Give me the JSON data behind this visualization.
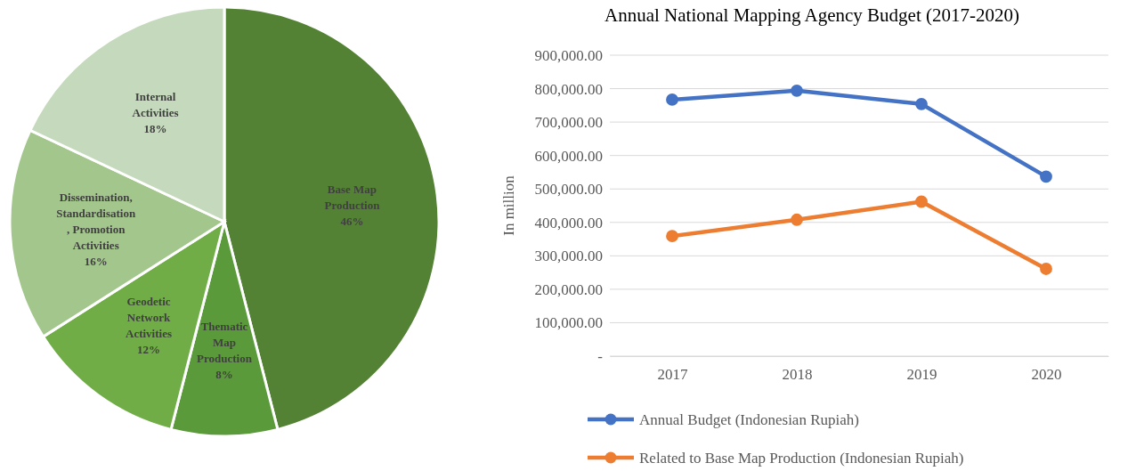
{
  "chart_data": [
    {
      "type": "pie",
      "categories": [
        "Base Map Production",
        "Thematic Map Production",
        "Geodetic Network Activities",
        "Dissemination, Standardisation, Promotion Activities",
        "Internal Activities"
      ],
      "values": [
        46,
        8,
        12,
        16,
        18
      ],
      "colors": [
        "#548235",
        "#5a9a3a",
        "#70ad47",
        "#a3c68c",
        "#c5dabc"
      ],
      "value_labels": [
        "46%",
        "8%",
        "12%",
        "16%",
        "18%"
      ]
    },
    {
      "type": "line",
      "title": "Annual National Mapping Agency Budget (2017-2020)",
      "ylabel": "In million",
      "categories": [
        "2017",
        "2018",
        "2019",
        "2020"
      ],
      "series": [
        {
          "name": "Annual Budget (Indonesian Rupiah)",
          "color": "#4472c4",
          "values": [
            767000,
            794000,
            754000,
            537000
          ]
        },
        {
          "name": "Related to Base Map Production (Indonesian Rupiah)",
          "color": "#ed7d31",
          "values": [
            359000,
            408000,
            462000,
            261000
          ]
        }
      ],
      "ylim": [
        0,
        900000
      ],
      "yticks": [
        {
          "value": 0,
          "label": "-"
        },
        {
          "value": 100000,
          "label": "100,000.00"
        },
        {
          "value": 200000,
          "label": "200,000.00"
        },
        {
          "value": 300000,
          "label": "300,000.00"
        },
        {
          "value": 400000,
          "label": "400,000.00"
        },
        {
          "value": 500000,
          "label": "500,000.00"
        },
        {
          "value": 600000,
          "label": "600,000.00"
        },
        {
          "value": 700000,
          "label": "700,000.00"
        },
        {
          "value": 800000,
          "label": "800,000.00"
        },
        {
          "value": 900000,
          "label": "900,000.00"
        }
      ],
      "grid": "y",
      "legend": "bottom",
      "marker": "circle",
      "line_style": "solid"
    }
  ]
}
